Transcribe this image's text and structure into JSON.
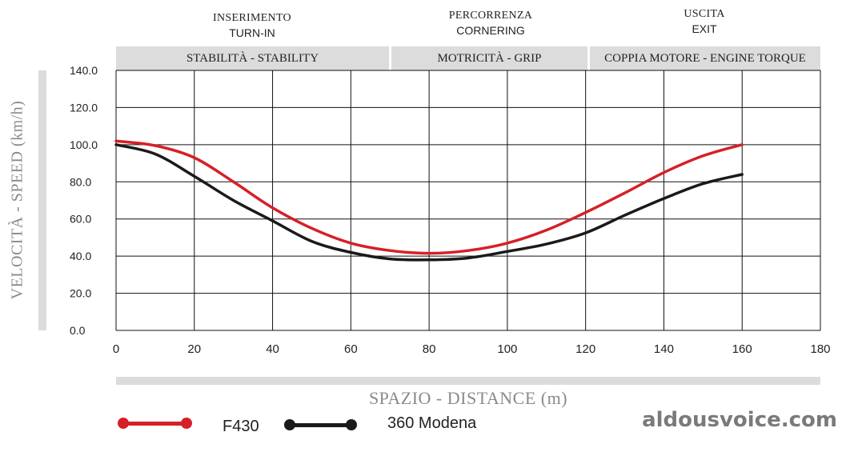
{
  "phases": [
    {
      "it": "INSERIMENTO",
      "en": "TURN-IN"
    },
    {
      "it": "PERCORRENZA",
      "en": "CORNERING"
    },
    {
      "it": "USCITA",
      "en": "EXIT"
    }
  ],
  "bands": [
    "STABILITÀ - STABILITY",
    "MOTRICITÀ - GRIP",
    "COPPIA MOTORE - ENGINE TORQUE"
  ],
  "watermark": "aldousvoice.com",
  "colors": {
    "f430": "#d62027",
    "modena": "#1a1a1a",
    "band": "#dcdcdc",
    "axis_title": "#8a8a8a"
  },
  "chart_data": {
    "type": "line",
    "title": "",
    "xlabel": "SPAZIO - DISTANCE (m)",
    "ylabel": "VELOCITÀ - SPEED (km/h)",
    "xlim": [
      0,
      180
    ],
    "ylim": [
      0,
      140
    ],
    "x_ticks": [
      "0",
      "20",
      "40",
      "60",
      "80",
      "100",
      "120",
      "140",
      "160",
      "180"
    ],
    "y_ticks": [
      "0.0",
      "20.0",
      "40.0",
      "60.0",
      "80.0",
      "100.0",
      "120.0",
      "140.0"
    ],
    "grid": true,
    "x": [
      0,
      10,
      20,
      30,
      40,
      50,
      60,
      70,
      80,
      90,
      100,
      110,
      120,
      130,
      140,
      150,
      160
    ],
    "series": [
      {
        "name": "F430",
        "values": [
          102,
          99.5,
          93,
          80,
          66,
          55,
          47,
          43,
          41.5,
          43,
          47,
          54,
          63.5,
          74,
          85,
          94,
          100
        ]
      },
      {
        "name": "360 Modena",
        "values": [
          100,
          95,
          83,
          70,
          59,
          48,
          42,
          38.5,
          38,
          39,
          42.5,
          46.5,
          52.5,
          62,
          71,
          79,
          84
        ]
      }
    ]
  }
}
